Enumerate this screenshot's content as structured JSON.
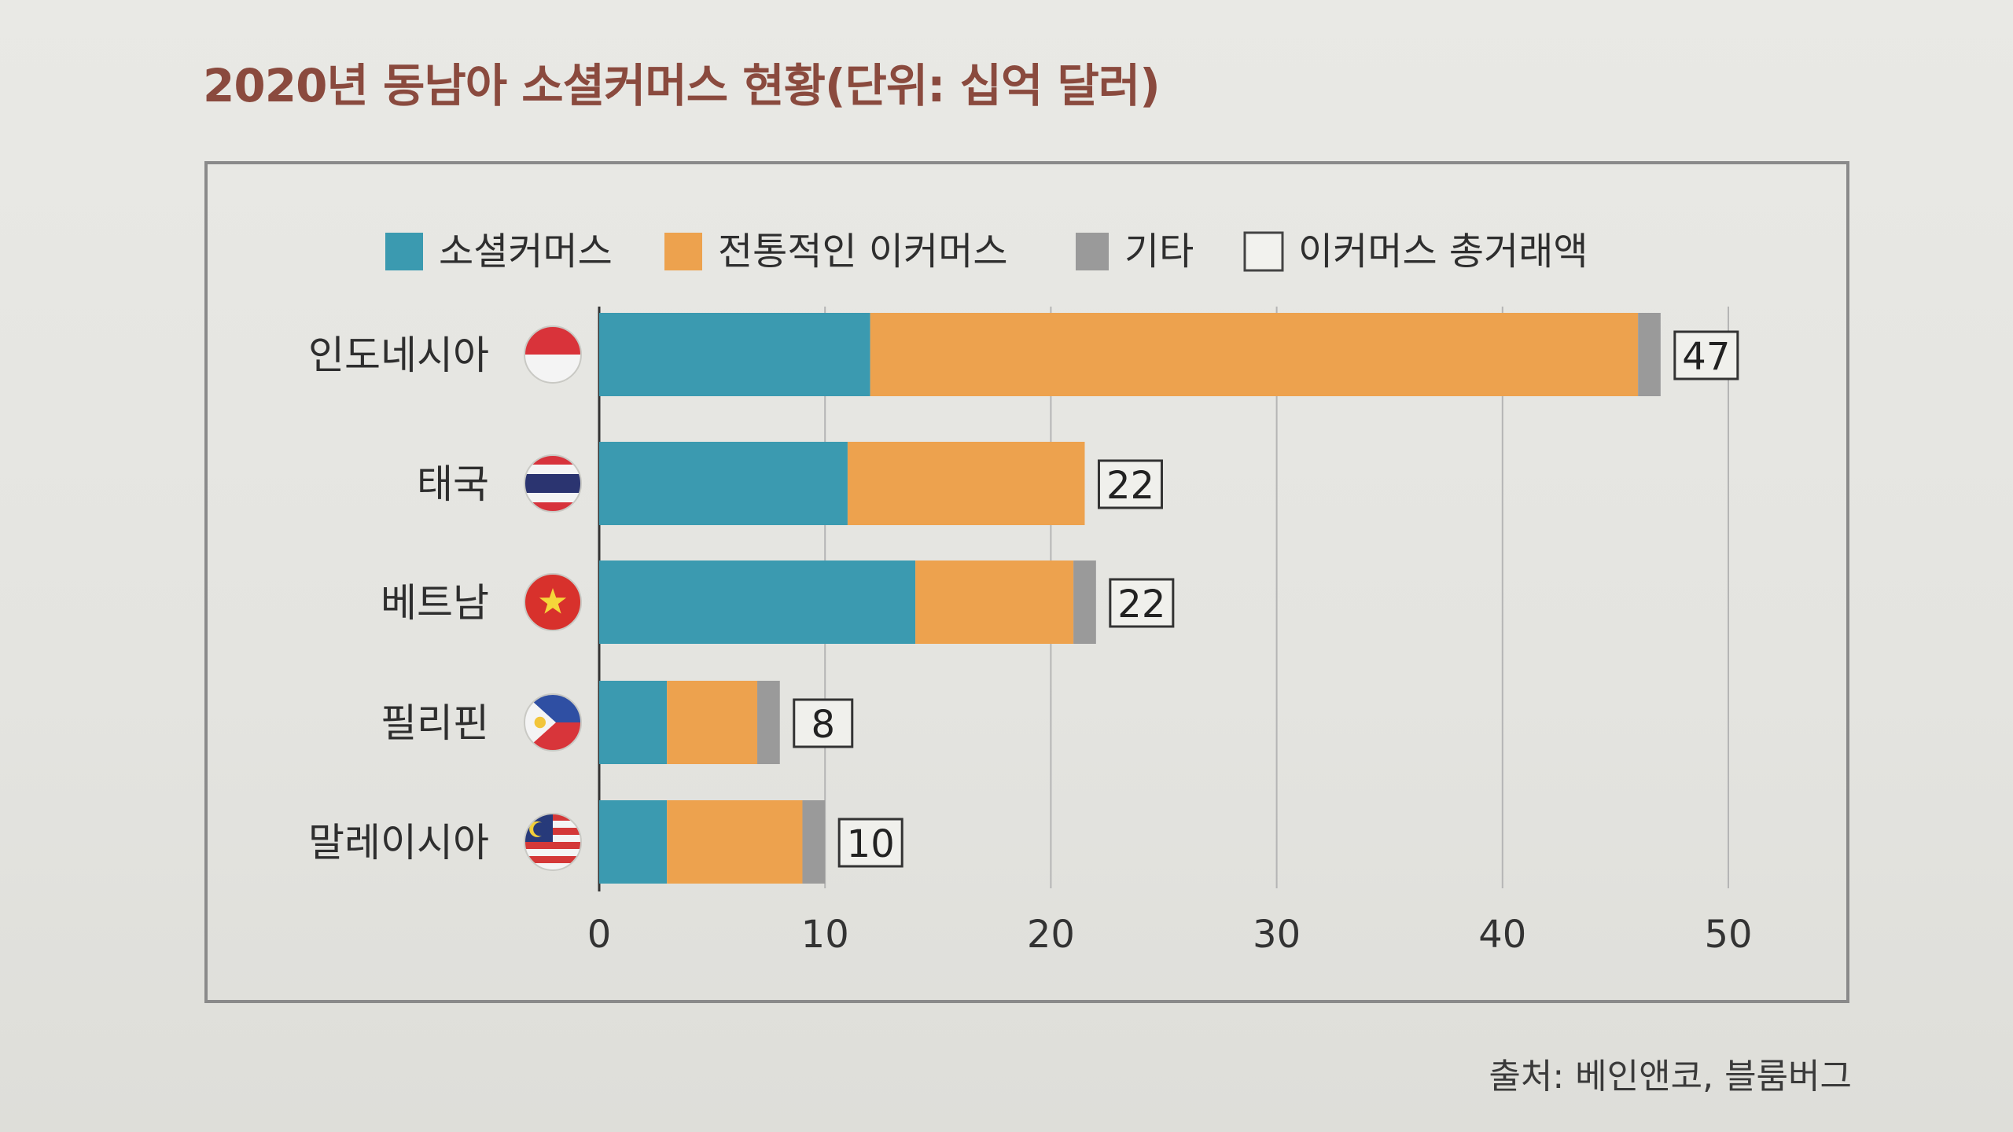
{
  "title": "2020년 동남아 소셜커머스 현황(단위: 십억 달러)",
  "source": "출처: 베인앤코, 블룸버그",
  "colors": {
    "social": "#3b9ab0",
    "traditional": "#eda24e",
    "other": "#9a9a9a",
    "frame": "#8a8a8a",
    "grid": "#b5b5b5",
    "title": "#8a4a3e"
  },
  "flags": [
    "indonesia-flag-icon",
    "thailand-flag-icon",
    "vietnam-flag-icon",
    "philippines-flag-icon",
    "malaysia-flag-icon"
  ],
  "chart_data": {
    "type": "bar",
    "orientation": "horizontal",
    "stacked": true,
    "categories": [
      "인도네시아",
      "태국",
      "베트남",
      "필리핀",
      "말레이시아"
    ],
    "series": [
      {
        "name": "소셜커머스",
        "color": "#3b9ab0",
        "values": [
          12,
          11,
          14,
          3,
          3
        ]
      },
      {
        "name": "전통적인 이커머스",
        "color": "#eda24e",
        "values": [
          34,
          10.5,
          7,
          4,
          6
        ]
      },
      {
        "name": "기타",
        "color": "#9a9a9a",
        "values": [
          1,
          0,
          1,
          1,
          1
        ]
      }
    ],
    "totals_legend": "이커머스 총거래액",
    "totals": [
      47,
      22,
      22,
      8,
      10
    ],
    "xlim": [
      0,
      50
    ],
    "xticks": [
      "0",
      "10",
      "20",
      "30",
      "40",
      "50"
    ],
    "grid": true,
    "legend_position": "top"
  }
}
